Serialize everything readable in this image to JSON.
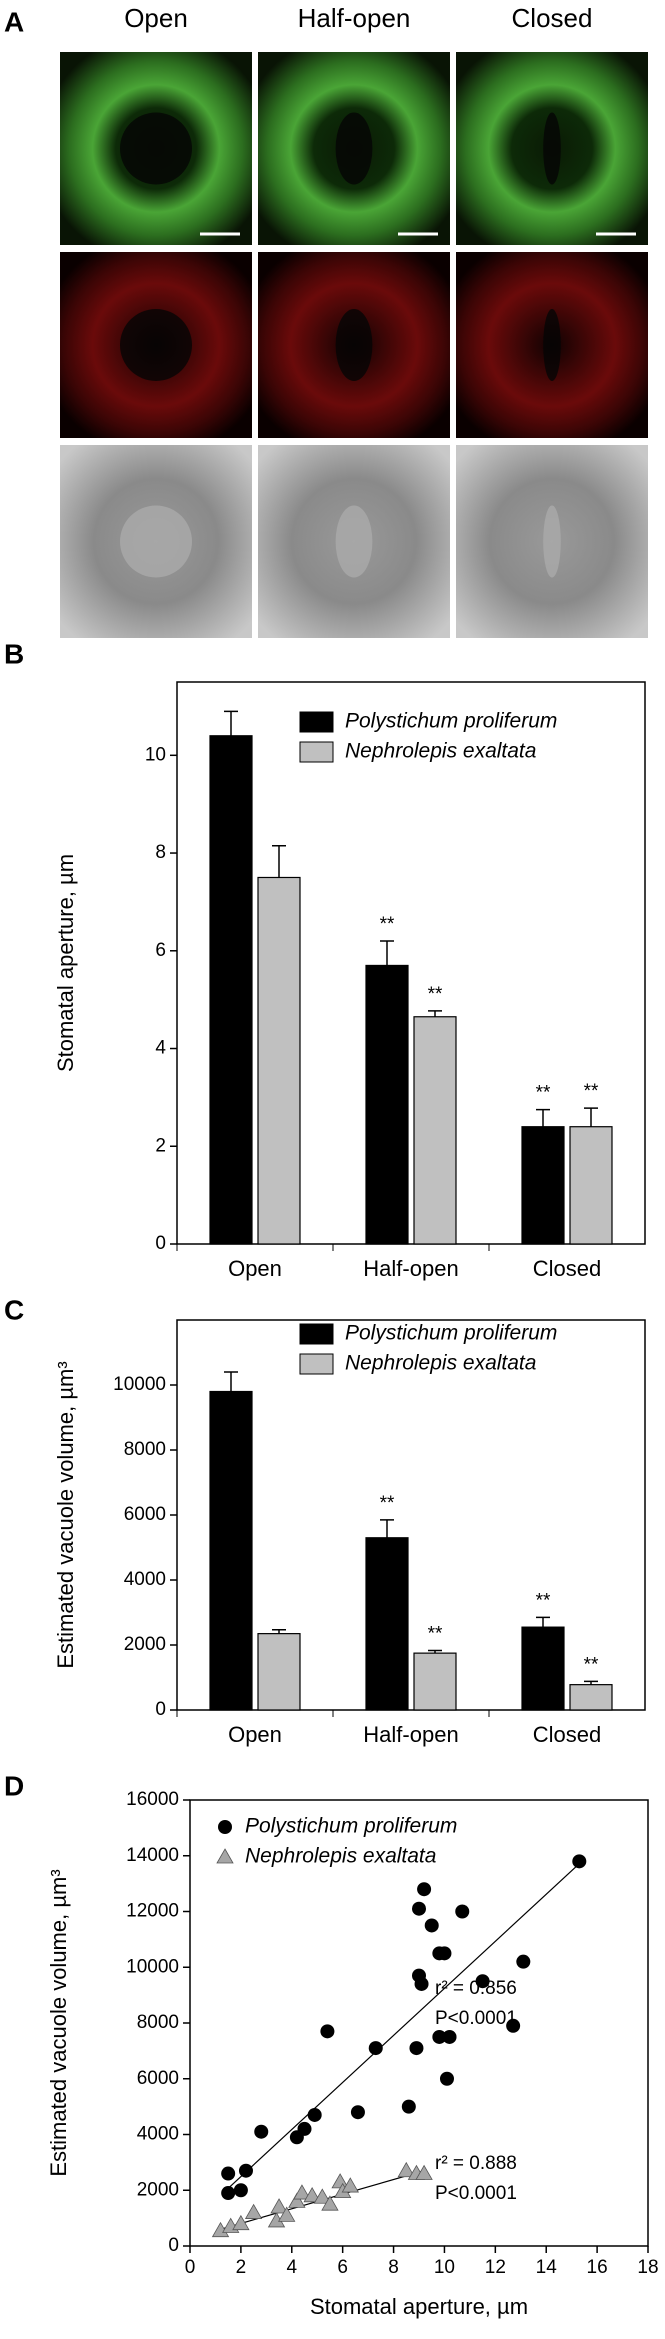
{
  "panel_labels": [
    "A",
    "B",
    "C",
    "D"
  ],
  "micrographs": {
    "columns": [
      "Open",
      "Half-open",
      "Closed"
    ]
  },
  "chart_data": [
    {
      "type": "bar",
      "ylabel": "Stomatal aperture, µm",
      "categories": [
        "Open",
        "Half-open",
        "Closed"
      ],
      "ylim": [
        0,
        11.5
      ],
      "yticks": [
        0,
        2,
        4,
        6,
        8,
        10
      ],
      "series": [
        {
          "name": "Polystichum proliferum",
          "color": "#000000",
          "values": [
            10.4,
            5.7,
            2.4
          ],
          "errors": [
            0.5,
            0.5,
            0.35
          ],
          "significance": [
            null,
            "**",
            "**"
          ]
        },
        {
          "name": "Nephrolepis exaltata",
          "color": "#c0c0c0",
          "values": [
            7.5,
            4.65,
            2.4
          ],
          "errors": [
            0.65,
            0.12,
            0.38
          ],
          "significance": [
            null,
            "**",
            "**"
          ]
        }
      ]
    },
    {
      "type": "bar",
      "ylabel": "Estimated vacuole volume, µm³",
      "categories": [
        "Open",
        "Half-open",
        "Closed"
      ],
      "ylim": [
        0,
        12000
      ],
      "yticks": [
        0,
        2000,
        4000,
        6000,
        8000,
        10000
      ],
      "series": [
        {
          "name": "Polystichum proliferum",
          "color": "#000000",
          "values": [
            9800,
            5300,
            2550
          ],
          "errors": [
            600,
            550,
            300
          ],
          "significance": [
            null,
            "**",
            "**"
          ]
        },
        {
          "name": "Nephrolepis exaltata",
          "color": "#c0c0c0",
          "values": [
            2350,
            1750,
            780
          ],
          "errors": [
            120,
            80,
            100
          ],
          "significance": [
            null,
            "**",
            "**"
          ]
        }
      ]
    },
    {
      "type": "scatter",
      "xlabel": "Stomatal aperture, µm",
      "ylabel": "Estimated vacuole volume, µm³",
      "xlim": [
        0,
        18
      ],
      "xticks": [
        0,
        2,
        4,
        6,
        8,
        10,
        12,
        14,
        16,
        18
      ],
      "ylim": [
        0,
        16000
      ],
      "yticks": [
        0,
        2000,
        4000,
        6000,
        8000,
        10000,
        12000,
        14000,
        16000
      ],
      "series": [
        {
          "name": "Polystichum proliferum",
          "color": "#000000",
          "marker": "circle",
          "x": [
            1.5,
            1.5,
            2.2,
            2.0,
            2.8,
            4.2,
            4.5,
            4.9,
            5.4,
            6.6,
            7.3,
            8.6,
            8.9,
            9.0,
            9.1,
            9.0,
            9.2,
            9.5,
            9.8,
            9.8,
            10.2,
            10.0,
            10.1,
            10.7,
            11.5,
            12.7,
            13.1,
            15.3
          ],
          "y": [
            1900,
            2600,
            2700,
            2000,
            4100,
            3900,
            4200,
            4700,
            7700,
            4800,
            7100,
            5000,
            7100,
            9700,
            9400,
            12100,
            12800,
            11500,
            10500,
            7500,
            7500,
            10500,
            6000,
            12000,
            9500,
            7900,
            10200,
            13800
          ],
          "fit": {
            "x": [
              1.3,
              15.4
            ],
            "y": [
              1900,
              13800
            ]
          },
          "annotations": [
            "r² = 0.856",
            "P<0.0001"
          ]
        },
        {
          "name": "Nephrolepis exaltata",
          "color": "#a6a6a6",
          "marker": "triangle",
          "x": [
            1.2,
            1.6,
            2.0,
            2.5,
            3.4,
            3.5,
            3.8,
            4.2,
            4.4,
            4.8,
            5.2,
            5.5,
            5.9,
            6.0,
            6.3,
            8.5,
            8.9,
            9.2
          ],
          "y": [
            550,
            700,
            800,
            1200,
            900,
            1400,
            1100,
            1600,
            1900,
            1800,
            1750,
            1500,
            2300,
            1950,
            2150,
            2700,
            2600,
            2600
          ],
          "fit": {
            "x": [
              1.2,
              9.2
            ],
            "y": [
              600,
              2700
            ]
          },
          "annotations": [
            "r² = 0.888",
            "P<0.0001"
          ]
        }
      ]
    }
  ]
}
